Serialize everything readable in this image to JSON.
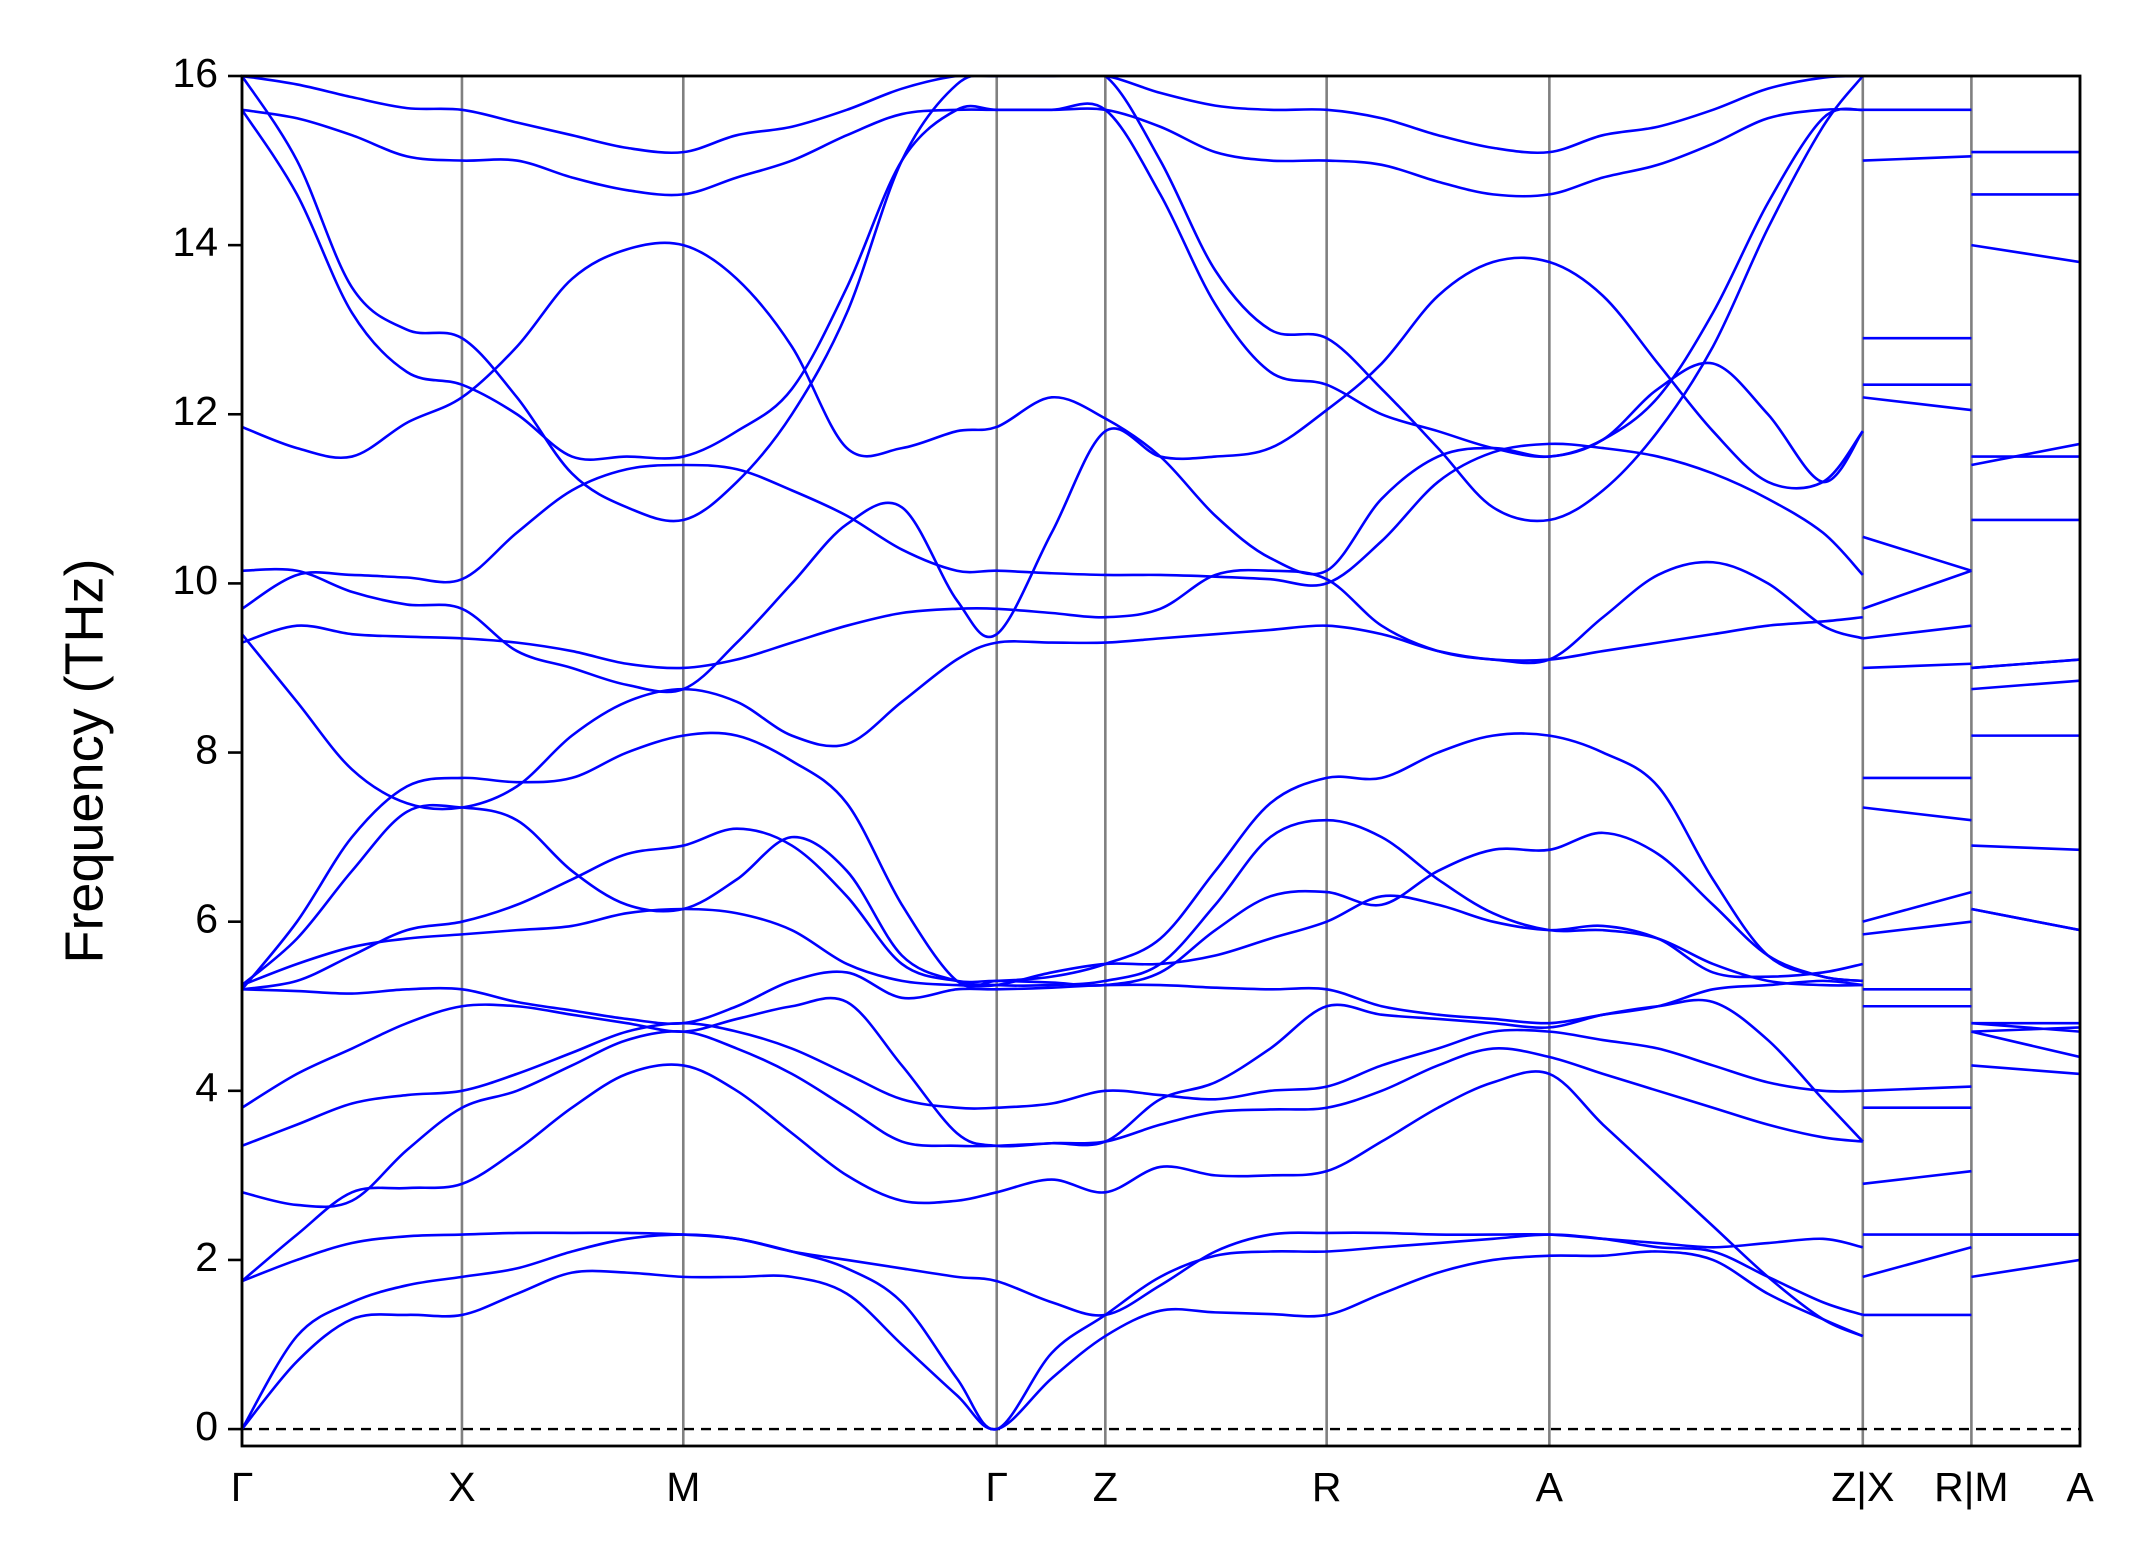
{
  "chart_data": {
    "type": "line",
    "ylabel": "Frequency (THz)",
    "color": "#0000ff",
    "xgrid": true,
    "zero_line": true,
    "xlim": [
      0,
      13.37
    ],
    "ylim": [
      -0.2,
      16
    ],
    "yticks": [
      0,
      2,
      4,
      6,
      8,
      10,
      12,
      14,
      16
    ],
    "xticks": [
      {
        "value": 0,
        "label": "Γ"
      },
      {
        "value": 1.6,
        "label": "X"
      },
      {
        "value": 3.21,
        "label": "M"
      },
      {
        "value": 5.49,
        "label": "Γ"
      },
      {
        "value": 6.28,
        "label": "Z"
      },
      {
        "value": 7.89,
        "label": "R"
      },
      {
        "value": 9.51,
        "label": "A"
      },
      {
        "value": 11.79,
        "label": "Z|X"
      },
      {
        "value": 12.58,
        "label": "R|M"
      },
      {
        "value": 13.37,
        "label": "A"
      }
    ],
    "x": [
      0,
      0.4,
      0.8,
      1.2,
      1.6,
      2.0,
      2.4,
      2.8,
      3.21,
      3.6,
      4.0,
      4.4,
      4.8,
      5.2,
      5.49,
      5.89,
      6.28,
      6.68,
      7.08,
      7.48,
      7.89,
      8.29,
      8.7,
      9.1,
      9.51,
      9.9,
      10.3,
      10.7,
      11.1,
      11.5,
      11.79,
      null,
      11.79,
      12.58,
      null,
      12.58,
      13.37
    ],
    "series": [
      {
        "values": [
          0,
          0.8,
          1.3,
          1.35,
          1.35,
          1.6,
          1.85,
          1.85,
          1.8,
          1.8,
          1.8,
          1.6,
          1.0,
          0.4,
          0,
          0.6,
          1.1,
          1.4,
          1.38,
          1.36,
          1.35,
          1.6,
          1.85,
          2.0,
          2.05,
          2.05,
          2.1,
          2.0,
          1.6,
          1.3,
          1.1,
          null,
          1.35,
          1.35,
          null,
          1.8,
          2.0
        ]
      },
      {
        "values": [
          0,
          1.1,
          1.5,
          1.7,
          1.8,
          1.9,
          2.1,
          2.25,
          2.3,
          2.25,
          2.1,
          1.9,
          1.5,
          0.6,
          0,
          0.9,
          1.35,
          1.8,
          2.05,
          2.1,
          2.1,
          2.15,
          2.2,
          2.25,
          2.3,
          2.25,
          2.15,
          2.1,
          1.8,
          1.5,
          1.35,
          null,
          1.8,
          2.15,
          null,
          2.3,
          2.3
        ]
      },
      {
        "values": [
          1.75,
          2.0,
          2.2,
          2.28,
          2.3,
          2.32,
          2.32,
          2.32,
          2.3,
          2.25,
          2.1,
          2.0,
          1.9,
          1.8,
          1.75,
          1.5,
          1.35,
          1.7,
          2.1,
          2.3,
          2.32,
          2.32,
          2.3,
          2.3,
          2.3,
          2.25,
          2.2,
          2.15,
          2.2,
          2.25,
          2.15,
          null,
          2.3,
          2.3,
          null,
          2.3,
          2.3
        ]
      },
      {
        "values": [
          1.75,
          2.3,
          2.8,
          2.85,
          2.9,
          3.3,
          3.8,
          4.2,
          4.3,
          4.0,
          3.5,
          3.0,
          2.7,
          2.7,
          2.8,
          2.95,
          2.8,
          3.1,
          3.0,
          3.0,
          3.05,
          3.4,
          3.8,
          4.1,
          4.2,
          3.6,
          3.0,
          2.4,
          1.8,
          1.3,
          1.1,
          null,
          2.9,
          3.05,
          null,
          4.3,
          4.2
        ]
      },
      {
        "values": [
          2.8,
          2.65,
          2.7,
          3.3,
          3.8,
          4.0,
          4.3,
          4.6,
          4.7,
          4.5,
          4.2,
          3.8,
          3.4,
          3.35,
          3.35,
          3.38,
          3.4,
          3.6,
          3.75,
          3.78,
          3.8,
          4.0,
          4.3,
          4.5,
          4.4,
          4.2,
          4.0,
          3.8,
          3.6,
          3.45,
          3.4,
          null,
          3.8,
          3.8,
          null,
          4.7,
          4.4
        ]
      },
      {
        "values": [
          3.35,
          3.6,
          3.85,
          3.95,
          4.0,
          4.2,
          4.45,
          4.7,
          4.8,
          4.7,
          4.5,
          4.2,
          3.9,
          3.8,
          3.8,
          3.85,
          4.0,
          3.95,
          3.9,
          4.0,
          4.05,
          4.3,
          4.5,
          4.7,
          4.7,
          4.6,
          4.5,
          4.3,
          4.1,
          4.0,
          4.0,
          null,
          4.0,
          4.05,
          null,
          4.8,
          4.7
        ]
      },
      {
        "values": [
          3.8,
          4.2,
          4.5,
          4.8,
          5.0,
          5.0,
          4.9,
          4.8,
          4.7,
          4.85,
          5.0,
          5.05,
          4.3,
          3.5,
          3.35,
          3.38,
          3.4,
          3.9,
          4.1,
          4.5,
          5.0,
          4.9,
          4.85,
          4.8,
          4.75,
          4.9,
          5.0,
          5.05,
          4.6,
          3.9,
          3.4,
          null,
          5.0,
          5.0,
          null,
          4.7,
          4.75
        ]
      },
      {
        "values": [
          5.2,
          5.18,
          5.15,
          5.2,
          5.2,
          5.05,
          4.95,
          4.85,
          4.8,
          5.0,
          5.3,
          5.4,
          5.1,
          5.2,
          5.2,
          5.22,
          5.25,
          5.25,
          5.22,
          5.2,
          5.2,
          5.0,
          4.9,
          4.85,
          4.8,
          4.9,
          5.0,
          5.2,
          5.25,
          5.3,
          5.25,
          null,
          5.2,
          5.2,
          null,
          4.8,
          4.8
        ]
      },
      {
        "values": [
          5.25,
          5.5,
          5.7,
          5.8,
          5.85,
          5.9,
          5.95,
          6.1,
          6.15,
          6.1,
          5.9,
          5.5,
          5.3,
          5.25,
          5.25,
          5.4,
          5.5,
          5.5,
          5.6,
          5.8,
          6.0,
          6.3,
          6.2,
          6.0,
          5.9,
          5.95,
          5.8,
          5.4,
          5.35,
          5.4,
          5.5,
          null,
          5.85,
          6.0,
          null,
          6.15,
          5.9
        ]
      },
      {
        "values": [
          5.2,
          5.3,
          5.6,
          5.9,
          6.0,
          6.2,
          6.5,
          6.8,
          6.9,
          7.1,
          6.9,
          6.3,
          5.5,
          5.3,
          5.3,
          5.28,
          5.25,
          5.4,
          5.9,
          6.3,
          6.35,
          6.2,
          6.6,
          6.85,
          6.85,
          7.05,
          6.8,
          6.2,
          5.6,
          5.35,
          5.3,
          null,
          6.0,
          6.35,
          null,
          6.9,
          6.85
        ]
      },
      {
        "values": [
          5.25,
          5.8,
          6.6,
          7.3,
          7.35,
          7.2,
          6.6,
          6.2,
          6.15,
          6.5,
          7.0,
          6.6,
          5.6,
          5.3,
          5.25,
          5.25,
          5.3,
          5.5,
          6.2,
          7.0,
          7.2,
          7.0,
          6.5,
          6.1,
          5.9,
          5.9,
          5.8,
          5.5,
          5.3,
          5.25,
          5.25,
          null,
          7.35,
          7.2,
          null,
          6.15,
          5.9
        ]
      },
      {
        "values": [
          5.2,
          6.0,
          7.0,
          7.6,
          7.7,
          7.65,
          7.7,
          8.0,
          8.2,
          8.2,
          7.9,
          7.4,
          6.2,
          5.3,
          5.3,
          5.35,
          5.5,
          5.8,
          6.6,
          7.4,
          7.7,
          7.7,
          8.0,
          8.2,
          8.2,
          8.0,
          7.6,
          6.5,
          5.6,
          5.35,
          5.3,
          null,
          7.7,
          7.7,
          null,
          8.2,
          8.2
        ]
      },
      {
        "values": [
          9.4,
          8.6,
          7.8,
          7.4,
          7.35,
          7.6,
          8.2,
          8.6,
          8.75,
          8.6,
          8.2,
          8.1,
          8.6,
          9.1,
          9.3,
          9.3,
          9.3,
          9.35,
          9.4,
          9.45,
          9.5,
          9.4,
          9.2,
          9.1,
          9.1,
          9.2,
          9.3,
          9.4,
          9.5,
          9.55,
          9.6,
          null,
          9.0,
          9.05,
          null,
          9.0,
          9.1
        ]
      },
      {
        "values": [
          9.3,
          9.5,
          9.4,
          9.37,
          9.35,
          9.3,
          9.2,
          9.05,
          9.0,
          9.1,
          9.3,
          9.5,
          9.65,
          9.7,
          9.7,
          9.65,
          9.6,
          9.7,
          10.1,
          10.15,
          10.05,
          9.5,
          9.2,
          9.1,
          9.1,
          9.6,
          10.1,
          10.25,
          10.0,
          9.5,
          9.35,
          null,
          9.35,
          9.5,
          null,
          9.0,
          9.1
        ]
      },
      {
        "values": [
          9.7,
          10.1,
          10.1,
          10.07,
          10.05,
          10.6,
          11.1,
          11.35,
          11.4,
          11.35,
          11.1,
          10.8,
          10.4,
          10.15,
          10.15,
          10.12,
          10.1,
          10.1,
          10.08,
          10.05,
          10.0,
          10.5,
          11.2,
          11.55,
          11.65,
          11.6,
          11.5,
          11.3,
          11.0,
          10.6,
          10.1,
          null,
          10.55,
          10.15,
          null,
          11.4,
          11.65
        ]
      },
      {
        "values": [
          10.15,
          10.15,
          9.9,
          9.75,
          9.7,
          9.2,
          9.0,
          8.8,
          8.75,
          9.3,
          10.0,
          10.7,
          10.9,
          9.8,
          9.4,
          10.6,
          11.8,
          11.5,
          11.5,
          11.6,
          12.05,
          12.6,
          13.4,
          13.8,
          13.8,
          13.4,
          12.6,
          11.8,
          11.2,
          11.2,
          11.8,
          null,
          9.7,
          10.15,
          null,
          8.75,
          8.85
        ]
      },
      {
        "values": [
          11.85,
          11.6,
          11.5,
          11.9,
          12.2,
          12.8,
          13.6,
          13.95,
          14.0,
          13.6,
          12.8,
          11.6,
          11.6,
          11.8,
          11.85,
          12.2,
          11.95,
          11.5,
          10.8,
          10.3,
          10.15,
          11.0,
          11.5,
          11.6,
          11.5,
          11.7,
          12.3,
          12.6,
          12.0,
          11.2,
          11.8,
          null,
          12.2,
          12.05,
          null,
          14.0,
          13.8
        ]
      },
      {
        "values": [
          15.6,
          14.6,
          13.2,
          12.5,
          12.35,
          12.0,
          11.5,
          11.5,
          11.5,
          11.8,
          12.3,
          13.5,
          15.0,
          15.6,
          15.6,
          15.6,
          15.6,
          14.6,
          13.3,
          12.5,
          12.35,
          12.0,
          11.8,
          11.6,
          11.5,
          11.7,
          12.2,
          13.2,
          14.5,
          15.5,
          15.6,
          null,
          12.35,
          12.35,
          null,
          11.5,
          11.5
        ]
      },
      {
        "values": [
          16.0,
          15.0,
          13.5,
          13.0,
          12.9,
          12.2,
          11.3,
          10.9,
          10.75,
          11.2,
          12.0,
          13.2,
          15.0,
          15.9,
          16.0,
          16.0,
          16.0,
          15.0,
          13.7,
          13.0,
          12.9,
          12.3,
          11.6,
          10.9,
          10.75,
          11.1,
          11.8,
          12.8,
          14.2,
          15.4,
          16.0,
          null,
          12.9,
          12.9,
          null,
          10.75,
          10.75
        ]
      },
      {
        "values": [
          15.6,
          15.5,
          15.3,
          15.05,
          15.0,
          15.0,
          14.8,
          14.65,
          14.6,
          14.8,
          15.0,
          15.3,
          15.55,
          15.6,
          15.6,
          15.6,
          15.6,
          15.4,
          15.1,
          15.0,
          15.0,
          14.95,
          14.75,
          14.6,
          14.6,
          14.8,
          14.95,
          15.2,
          15.5,
          15.6,
          15.6,
          null,
          15.0,
          15.05,
          null,
          14.6,
          14.6
        ]
      },
      {
        "values": [
          16.0,
          15.9,
          15.75,
          15.62,
          15.6,
          15.45,
          15.3,
          15.15,
          15.1,
          15.3,
          15.4,
          15.6,
          15.85,
          16.0,
          16.0,
          16.0,
          16.0,
          15.8,
          15.65,
          15.6,
          15.6,
          15.5,
          15.3,
          15.15,
          15.1,
          15.3,
          15.4,
          15.6,
          15.85,
          15.98,
          16.0,
          null,
          15.6,
          15.6,
          null,
          15.1,
          15.1
        ]
      }
    ]
  }
}
